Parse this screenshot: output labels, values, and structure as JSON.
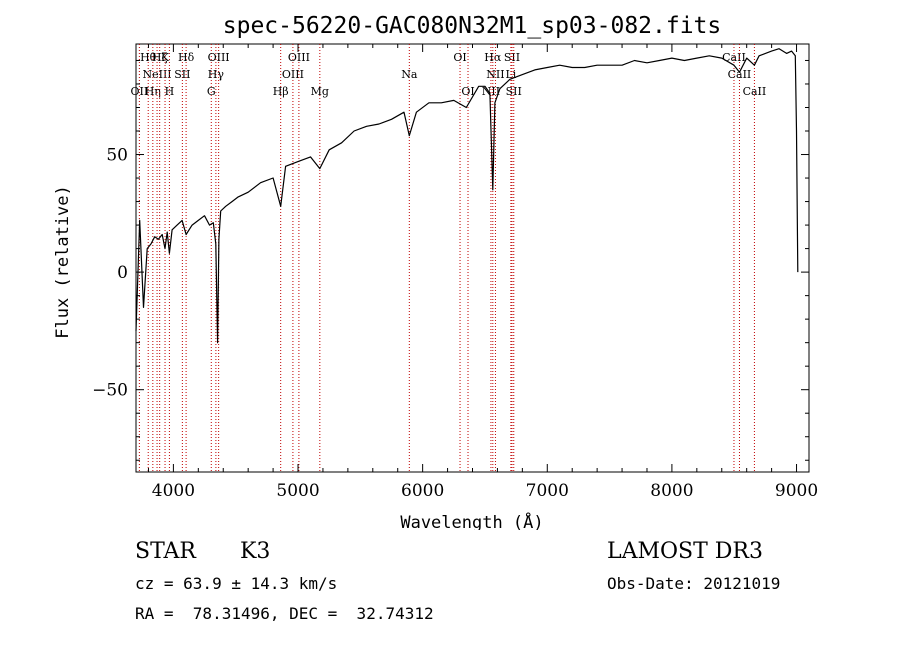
{
  "chart_data": {
    "type": "line",
    "title": "spec-56220-GAC080N32M1_sp03-082.fits",
    "xlabel": "Wavelength (Å)",
    "ylabel": "Flux (relative)",
    "xlim": [
      3700,
      9100
    ],
    "ylim": [
      -85,
      97
    ],
    "xticks": [
      4000,
      5000,
      6000,
      7000,
      8000,
      9000
    ],
    "yticks": [
      -50,
      0,
      50
    ],
    "grid": false,
    "series": [
      {
        "name": "spectrum",
        "x": [
          3700,
          3730,
          3760,
          3790,
          3820,
          3850,
          3880,
          3910,
          3933,
          3950,
          3968,
          3990,
          4030,
          4070,
          4102,
          4150,
          4200,
          4250,
          4290,
          4320,
          4340,
          4355,
          4365,
          4380,
          4420,
          4470,
          4520,
          4600,
          4700,
          4800,
          4861,
          4900,
          5000,
          5100,
          5175,
          5250,
          5350,
          5450,
          5550,
          5650,
          5750,
          5850,
          5893,
          5950,
          6050,
          6150,
          6250,
          6350,
          6450,
          6500,
          6540,
          6563,
          6580,
          6620,
          6700,
          6800,
          6900,
          7000,
          7100,
          7200,
          7300,
          7400,
          7500,
          7600,
          7700,
          7800,
          7900,
          8000,
          8100,
          8200,
          8300,
          8400,
          8498,
          8542,
          8600,
          8662,
          8700,
          8800,
          8860,
          8920,
          8960,
          8990,
          9000,
          9010
        ],
        "y": [
          -25,
          22,
          -15,
          10,
          12,
          15,
          14,
          16,
          10,
          17,
          8,
          18,
          20,
          22,
          16,
          20,
          22,
          24,
          20,
          21,
          12,
          -30,
          14,
          26,
          28,
          30,
          32,
          34,
          38,
          40,
          28,
          45,
          47,
          49,
          44,
          52,
          55,
          60,
          62,
          63,
          65,
          68,
          58,
          68,
          72,
          72,
          73,
          70,
          79,
          79,
          76,
          35,
          72,
          78,
          82,
          84,
          86,
          87,
          88,
          87,
          87,
          88,
          88,
          88,
          90,
          89,
          90,
          91,
          90,
          91,
          92,
          91,
          88,
          85,
          91,
          88,
          92,
          94,
          95,
          93,
          94,
          92,
          60,
          0
        ]
      }
    ],
    "lines": [
      {
        "wl": 3727,
        "labels": [
          "OII"
        ],
        "row": 3
      },
      {
        "wl": 3798,
        "labels": [
          "Hθ"
        ],
        "row": 1
      },
      {
        "wl": 3835,
        "labels": [
          "Hη"
        ],
        "row": 3
      },
      {
        "wl": 3869,
        "labels": [
          "NeIII"
        ],
        "row": 2
      },
      {
        "wl": 3890,
        "labels": [
          "Hζ"
        ],
        "row": 1
      },
      {
        "wl": 3933,
        "labels": [
          "K"
        ],
        "row": 1
      },
      {
        "wl": 3968,
        "labels": [
          "H"
        ],
        "row": 3
      },
      {
        "wl": 4072,
        "labels": [
          "SII"
        ],
        "row": 2
      },
      {
        "wl": 4102,
        "labels": [
          "Hδ"
        ],
        "row": 1
      },
      {
        "wl": 4304,
        "labels": [
          "G"
        ],
        "row": 3
      },
      {
        "wl": 4341,
        "labels": [
          "Hγ"
        ],
        "row": 2
      },
      {
        "wl": 4363,
        "labels": [
          "OIII"
        ],
        "row": 1
      },
      {
        "wl": 4861,
        "labels": [
          "Hβ"
        ],
        "row": 3
      },
      {
        "wl": 4959,
        "labels": [
          "OIII"
        ],
        "row": 2
      },
      {
        "wl": 5007,
        "labels": [
          "OIII"
        ],
        "row": 1
      },
      {
        "wl": 5175,
        "labels": [
          "Mg"
        ],
        "row": 3
      },
      {
        "wl": 5893,
        "labels": [
          "Na"
        ],
        "row": 2
      },
      {
        "wl": 6300,
        "labels": [
          "OI"
        ],
        "row": 1
      },
      {
        "wl": 6364,
        "labels": [
          "OI"
        ],
        "row": 3
      },
      {
        "wl": 6548,
        "labels": [
          "NII"
        ],
        "row": 3
      },
      {
        "wl": 6563,
        "labels": [
          "Hα"
        ],
        "row": 1
      },
      {
        "wl": 6584,
        "labels": [
          "NII"
        ],
        "row": 2
      },
      {
        "wl": 6708,
        "labels": [
          "Li"
        ],
        "row": 2
      },
      {
        "wl": 6717,
        "labels": [
          "SII"
        ],
        "row": 1
      },
      {
        "wl": 6731,
        "labels": [
          "SII"
        ],
        "row": 3
      },
      {
        "wl": 8498,
        "labels": [
          "CaII"
        ],
        "row": 1
      },
      {
        "wl": 8542,
        "labels": [
          "CaII"
        ],
        "row": 2
      },
      {
        "wl": 8662,
        "labels": [
          "CaII"
        ],
        "row": 3
      }
    ]
  },
  "info": {
    "object_type": "STAR",
    "subclass": "K3",
    "redshift": "cz = 63.9 ± 14.3 km/s",
    "coords": "RA =  78.31496, DEC =  32.74312",
    "survey": "LAMOST DR3",
    "obs_date": "Obs-Date: 20121019"
  }
}
